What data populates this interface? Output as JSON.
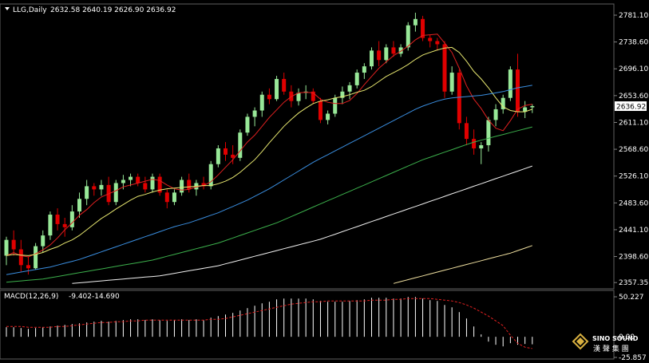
{
  "header": {
    "symbol_label": "LLG,Daily",
    "ohlc": "2632.58 2640.19 2626.90 2636.92"
  },
  "colors": {
    "up": "#98e898",
    "down": "#e00000",
    "ma5": "#e02020",
    "ma10": "#e8e870",
    "ma20": "#3a8ee0",
    "ma40": "#3cb04c",
    "ma60": "#f0f0f0",
    "ma120": "#f0e0a0",
    "macd_hist": "#ffffff",
    "macd_signal": "#e02020",
    "current_price_bg": "#ffffff"
  },
  "chart_data": [
    {
      "type": "candlestick",
      "title": "LLG,Daily",
      "ylim": [
        2350,
        2795
      ],
      "yticks": [
        "2781.10",
        "2738.60",
        "2696.10",
        "2653.60",
        "2611.10",
        "2568.60",
        "2526.10",
        "2483.60",
        "2441.10",
        "2398.60",
        "2357.35"
      ],
      "current_price": "2636.92",
      "candles": [
        [
          2400,
          2430,
          2385,
          2425
        ],
        [
          2425,
          2440,
          2400,
          2410
        ],
        [
          2410,
          2425,
          2375,
          2385
        ],
        [
          2385,
          2398,
          2370,
          2380
        ],
        [
          2380,
          2420,
          2378,
          2415
        ],
        [
          2415,
          2440,
          2405,
          2432
        ],
        [
          2432,
          2470,
          2425,
          2465
        ],
        [
          2465,
          2475,
          2440,
          2450
        ],
        [
          2450,
          2460,
          2430,
          2445
        ],
        [
          2445,
          2480,
          2440,
          2470
        ],
        [
          2470,
          2500,
          2460,
          2490
        ],
        [
          2490,
          2520,
          2480,
          2510
        ],
        [
          2510,
          2515,
          2495,
          2505
        ],
        [
          2505,
          2520,
          2495,
          2512
        ],
        [
          2512,
          2525,
          2480,
          2485
        ],
        [
          2485,
          2520,
          2480,
          2515
        ],
        [
          2515,
          2528,
          2505,
          2520
        ],
        [
          2520,
          2530,
          2510,
          2525
        ],
        [
          2525,
          2530,
          2510,
          2515
        ],
        [
          2515,
          2525,
          2500,
          2505
        ],
        [
          2505,
          2530,
          2500,
          2525
        ],
        [
          2525,
          2530,
          2495,
          2500
        ],
        [
          2500,
          2505,
          2475,
          2485
        ],
        [
          2485,
          2505,
          2480,
          2500
        ],
        [
          2500,
          2525,
          2495,
          2520
        ],
        [
          2520,
          2530,
          2500,
          2505
        ],
        [
          2505,
          2520,
          2495,
          2515
        ],
        [
          2515,
          2525,
          2505,
          2510
        ],
        [
          2510,
          2550,
          2505,
          2545
        ],
        [
          2545,
          2575,
          2540,
          2570
        ],
        [
          2570,
          2580,
          2550,
          2560
        ],
        [
          2560,
          2575,
          2545,
          2555
        ],
        [
          2555,
          2600,
          2550,
          2595
        ],
        [
          2595,
          2625,
          2590,
          2620
        ],
        [
          2620,
          2635,
          2605,
          2630
        ],
        [
          2630,
          2660,
          2620,
          2655
        ],
        [
          2655,
          2665,
          2640,
          2648
        ],
        [
          2648,
          2685,
          2645,
          2680
        ],
        [
          2680,
          2690,
          2655,
          2660
        ],
        [
          2660,
          2670,
          2635,
          2645
        ],
        [
          2645,
          2665,
          2638,
          2658
        ],
        [
          2658,
          2670,
          2648,
          2660
        ],
        [
          2660,
          2665,
          2640,
          2645
        ],
        [
          2645,
          2650,
          2610,
          2615
        ],
        [
          2615,
          2630,
          2608,
          2625
        ],
        [
          2625,
          2655,
          2620,
          2650
        ],
        [
          2650,
          2668,
          2640,
          2660
        ],
        [
          2660,
          2675,
          2648,
          2670
        ],
        [
          2670,
          2695,
          2665,
          2690
        ],
        [
          2690,
          2705,
          2680,
          2700
        ],
        [
          2700,
          2730,
          2695,
          2725
        ],
        [
          2725,
          2740,
          2700,
          2710
        ],
        [
          2710,
          2735,
          2705,
          2730
        ],
        [
          2730,
          2740,
          2715,
          2720
        ],
        [
          2720,
          2735,
          2715,
          2730
        ],
        [
          2730,
          2770,
          2725,
          2765
        ],
        [
          2765,
          2785,
          2755,
          2775
        ],
        [
          2775,
          2780,
          2740,
          2745
        ],
        [
          2745,
          2750,
          2730,
          2740
        ],
        [
          2740,
          2745,
          2725,
          2735
        ],
        [
          2735,
          2740,
          2650,
          2660
        ],
        [
          2660,
          2700,
          2655,
          2690
        ],
        [
          2690,
          2695,
          2600,
          2610
        ],
        [
          2610,
          2620,
          2575,
          2585
        ],
        [
          2585,
          2600,
          2560,
          2570
        ],
        [
          2570,
          2580,
          2545,
          2575
        ],
        [
          2575,
          2620,
          2565,
          2615
        ],
        [
          2615,
          2640,
          2605,
          2632
        ],
        [
          2632,
          2655,
          2625,
          2650
        ],
        [
          2650,
          2700,
          2645,
          2695
        ],
        [
          2695,
          2720,
          2620,
          2628
        ],
        [
          2628,
          2645,
          2618,
          2635
        ],
        [
          2635,
          2640,
          2626,
          2637
        ]
      ],
      "ma": [
        {
          "name": "MA5",
          "color_key": "ma5",
          "values": [
            2400,
            2405,
            2400,
            2398,
            2403,
            2409,
            2417,
            2428,
            2441,
            2452,
            2464,
            2473,
            2484,
            2493,
            2498,
            2503,
            2509,
            2512,
            2515,
            2518,
            2521,
            2519,
            2512,
            2506,
            2504,
            2505,
            2509,
            2511,
            2517,
            2528,
            2540,
            2552,
            2566,
            2580,
            2591,
            2605,
            2619,
            2631,
            2643,
            2652,
            2658,
            2659,
            2658,
            2648,
            2643,
            2641,
            2641,
            2646,
            2657,
            2671,
            2684,
            2697,
            2707,
            2717,
            2724,
            2732,
            2742,
            2749,
            2750,
            2751,
            2737,
            2722,
            2697,
            2669,
            2648,
            2633,
            2615,
            2602,
            2598,
            2614,
            2632,
            2638,
            2640
          ]
        },
        {
          "name": "MA10",
          "color_key": "ma10",
          "values": [
            2400,
            2402,
            2401,
            2400,
            2402,
            2405,
            2410,
            2414,
            2420,
            2425,
            2432,
            2441,
            2450,
            2459,
            2466,
            2474,
            2481,
            2488,
            2494,
            2497,
            2501,
            2504,
            2506,
            2507,
            2508,
            2509,
            2510,
            2511,
            2511,
            2514,
            2518,
            2524,
            2532,
            2542,
            2552,
            2565,
            2579,
            2592,
            2605,
            2616,
            2626,
            2634,
            2641,
            2645,
            2647,
            2650,
            2652,
            2655,
            2659,
            2662,
            2668,
            2676,
            2684,
            2690,
            2696,
            2703,
            2711,
            2718,
            2722,
            2726,
            2729,
            2730,
            2722,
            2708,
            2692,
            2680,
            2666,
            2650,
            2636,
            2630,
            2628,
            2628,
            2632
          ]
        },
        {
          "name": "MA20",
          "color_key": "ma20",
          "values": [
            2370,
            2372,
            2374,
            2376,
            2378,
            2380,
            2382,
            2385,
            2388,
            2391,
            2394,
            2398,
            2402,
            2406,
            2410,
            2414,
            2418,
            2422,
            2426,
            2430,
            2434,
            2438,
            2442,
            2446,
            2449,
            2452,
            2456,
            2460,
            2464,
            2468,
            2473,
            2478,
            2483,
            2488,
            2494,
            2500,
            2506,
            2513,
            2520,
            2527,
            2534,
            2541,
            2548,
            2554,
            2560,
            2566,
            2572,
            2578,
            2584,
            2590,
            2596,
            2602,
            2608,
            2614,
            2620,
            2626,
            2632,
            2637,
            2641,
            2645,
            2648,
            2650,
            2651,
            2652,
            2653,
            2654,
            2656,
            2658,
            2660,
            2663,
            2666,
            2668,
            2670
          ]
        },
        {
          "name": "MA40",
          "color_key": "ma40",
          "values": [
            2358,
            2359,
            2360,
            2361,
            2362,
            2363,
            2365,
            2367,
            2369,
            2371,
            2373,
            2375,
            2377,
            2379,
            2381,
            2383,
            2385,
            2387,
            2389,
            2391,
            2393,
            2396,
            2399,
            2402,
            2405,
            2408,
            2411,
            2414,
            2417,
            2420,
            2424,
            2428,
            2432,
            2436,
            2440,
            2444,
            2448,
            2452,
            2457,
            2462,
            2467,
            2472,
            2477,
            2482,
            2487,
            2492,
            2497,
            2502,
            2507,
            2512,
            2517,
            2522,
            2527,
            2532,
            2537,
            2542,
            2547,
            2552,
            2556,
            2560,
            2564,
            2568,
            2572,
            2576,
            2580,
            2583,
            2586,
            2589,
            2592,
            2595,
            2598,
            2601,
            2604
          ]
        },
        {
          "name": "MA60",
          "color_key": "ma60",
          "values": [
            null,
            null,
            null,
            null,
            null,
            null,
            null,
            null,
            null,
            2356,
            2357,
            2358,
            2359,
            2360,
            2361,
            2362,
            2363,
            2364,
            2365,
            2366,
            2367,
            2368,
            2370,
            2372,
            2374,
            2376,
            2378,
            2380,
            2382,
            2384,
            2387,
            2390,
            2393,
            2396,
            2399,
            2402,
            2405,
            2408,
            2411,
            2414,
            2417,
            2420,
            2423,
            2426,
            2430,
            2434,
            2438,
            2442,
            2446,
            2450,
            2454,
            2458,
            2462,
            2466,
            2470,
            2474,
            2478,
            2482,
            2486,
            2490,
            2494,
            2498,
            2502,
            2506,
            2510,
            2514,
            2518,
            2522,
            2526,
            2530,
            2534,
            2538,
            2542
          ]
        },
        {
          "name": "MA120",
          "color_key": "ma120",
          "values": [
            null,
            null,
            null,
            null,
            null,
            null,
            null,
            null,
            null,
            null,
            null,
            null,
            null,
            null,
            null,
            null,
            null,
            null,
            null,
            null,
            null,
            null,
            null,
            null,
            null,
            null,
            null,
            null,
            null,
            null,
            null,
            null,
            null,
            null,
            null,
            null,
            null,
            null,
            null,
            null,
            null,
            null,
            null,
            null,
            null,
            null,
            null,
            null,
            null,
            null,
            null,
            null,
            null,
            2356,
            2359,
            2362,
            2365,
            2368,
            2371,
            2374,
            2377,
            2380,
            2383,
            2386,
            2389,
            2392,
            2395,
            2398,
            2401,
            2404,
            2408,
            2412,
            2416
          ]
        }
      ]
    },
    {
      "type": "bar",
      "title": "MACD(12,26,9) -9.402 -14.690",
      "label": "MACD(12,26,9)",
      "macd_value": "-9.402",
      "signal_value": "-14.690",
      "ylim": [
        -25.857,
        50.227
      ],
      "yticks": [
        "50.227",
        "0.00",
        "-25.857"
      ],
      "histogram": [
        12,
        12,
        11,
        10,
        11,
        12,
        13,
        14,
        15,
        16,
        17,
        18,
        19,
        20,
        19,
        20,
        21,
        22,
        22,
        21,
        22,
        21,
        20,
        21,
        22,
        21,
        22,
        21,
        24,
        26,
        28,
        30,
        33,
        36,
        39,
        42,
        44,
        47,
        48,
        48,
        48,
        48,
        47,
        45,
        44,
        44,
        44,
        45,
        46,
        47,
        49,
        49,
        49,
        48,
        48,
        50,
        50,
        48,
        46,
        45,
        40,
        37,
        31,
        23,
        13,
        3,
        -6,
        -10,
        -12,
        -8,
        -10,
        -9,
        -9.4
      ],
      "signal": [
        13,
        13,
        13,
        12,
        12,
        12,
        12,
        13,
        13,
        14,
        15,
        16,
        17,
        18,
        18,
        19,
        19,
        20,
        20,
        21,
        21,
        21,
        21,
        21,
        21,
        21,
        21,
        21,
        22,
        22,
        23,
        25,
        27,
        29,
        31,
        33,
        35,
        37,
        39,
        41,
        42,
        43,
        44,
        44,
        45,
        45,
        45,
        45,
        45,
        45,
        46,
        46,
        46,
        47,
        47,
        48,
        48,
        48,
        48,
        47,
        46,
        45,
        43,
        40,
        36,
        31,
        26,
        20,
        14,
        2,
        -8,
        -13,
        -14.7
      ]
    }
  ],
  "watermark": {
    "brand_en": "SINO SOUND",
    "brand_cn": "漢 聲 集 團"
  }
}
